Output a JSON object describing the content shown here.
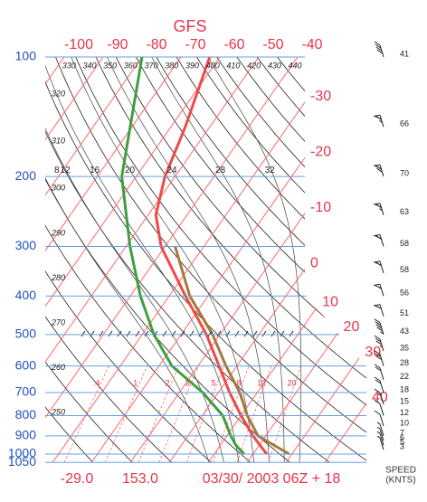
{
  "chart_data": {
    "type": "skewt",
    "title": "GFS",
    "log_y": true,
    "ylim": [
      1050,
      100
    ],
    "pressure_ticks": [
      100,
      200,
      300,
      400,
      500,
      600,
      700,
      800,
      900,
      1000,
      1050
    ],
    "temperature_ticks": [
      -100,
      -90,
      -80,
      -70,
      -60,
      -50,
      -40,
      -30,
      -20,
      -10,
      0,
      10,
      20,
      30,
      40
    ],
    "theta_labels": [
      250,
      260,
      270,
      280,
      290,
      300,
      310,
      320,
      330,
      340,
      350,
      360,
      370,
      380,
      390,
      400,
      410,
      420,
      430,
      440
    ],
    "theta_w_labels": [
      8,
      12,
      16,
      20,
      24,
      28,
      32
    ],
    "mixing_ratio": {
      "values": [
        0.4,
        1,
        2,
        3,
        5,
        8,
        12,
        20
      ],
      "value_labels": [
        ".4",
        "1",
        "2",
        "3",
        "5",
        "8",
        "12",
        "20"
      ]
    },
    "series": [
      {
        "color": "#f04848",
        "pressure": [
          100,
          150,
          200,
          250,
          300,
          400,
          500,
          600,
          700,
          800,
          900,
          1000
        ],
        "values": [
          -62.6,
          -56.3,
          -52.6,
          -48,
          -41,
          -25.8,
          -13.5,
          -4.6,
          2.9,
          10,
          16.7,
          23.5
        ]
      },
      {
        "color": "#3f9f3f",
        "pressure": [
          100,
          200,
          300,
          400,
          500,
          600,
          700,
          800,
          900,
          950,
          1000
        ],
        "values": [
          -80,
          -63.7,
          -49,
          -37.4,
          -27,
          -16.7,
          -4,
          5.3,
          11,
          14,
          17.7
        ]
      },
      {
        "color": "#a47a3c",
        "pressure": [
          300,
          400,
          500,
          600,
          700,
          800,
          900,
          1000
        ],
        "values": [
          -37.4,
          -24.7,
          -11.9,
          -2.8,
          5.5,
          11.6,
          18,
          29.3
        ]
      }
    ],
    "wind": {
      "pressure": [
        100,
        150,
        200,
        250,
        300,
        350,
        400,
        450,
        500,
        550,
        600,
        650,
        700,
        750,
        800,
        850,
        900,
        925,
        950,
        975
      ],
      "speed": [
        41,
        66,
        70,
        63,
        58,
        58,
        56,
        51,
        43,
        35,
        28,
        22,
        18,
        15,
        12,
        10,
        7,
        6,
        5,
        3
      ]
    },
    "footer": [
      "-29.0",
      "153.0",
      "03/30/ 2003 06Z + 18"
    ],
    "wind_axis_label": [
      "SPEED",
      "(KNTS)"
    ]
  }
}
